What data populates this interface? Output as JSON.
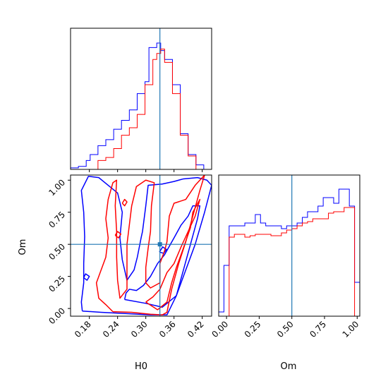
{
  "chart_data": {
    "type": "corner",
    "parameters": [
      "H0",
      "Om"
    ],
    "truths": {
      "H0": 0.33,
      "Om": 0.5
    },
    "colors": {
      "series_a": "#0000ff",
      "series_b": "#ff0000",
      "truth": "#1f77b4"
    },
    "grid": false,
    "legend": "none",
    "panels": [
      {
        "id": "hist-h0",
        "kind": "histogram",
        "x_param": "H0",
        "xlim": [
          0.14,
          0.44
        ],
        "ylim": [
          0,
          95
        ],
        "bin_edges": [
          0.14,
          0.1483,
          0.1567,
          0.165,
          0.1733,
          0.1817,
          0.19,
          0.1983,
          0.2067,
          0.215,
          0.2233,
          0.2317,
          0.24,
          0.2483,
          0.2567,
          0.265,
          0.2733,
          0.2817,
          0.29,
          0.2983,
          0.3067,
          0.315,
          0.3233,
          0.3317,
          0.34,
          0.3483,
          0.3567,
          0.365,
          0.3733,
          0.3817,
          0.39,
          0.3983,
          0.4067,
          0.415,
          0.4233,
          0.4317,
          0.44
        ],
        "series": [
          {
            "color_key": "series_a",
            "counts": [
              1,
              1,
              2,
              2,
              6,
              10,
              10,
              16,
              16,
              20,
              20,
              27,
              27,
              33,
              33,
              40,
              40,
              51,
              51,
              59,
              82,
              82,
              85,
              80,
              74,
              74,
              57,
              57,
              24,
              24,
              10,
              10,
              3,
              3,
              0,
              0
            ]
          },
          {
            "color_key": "series_b",
            "counts": [
              0,
              0,
              0,
              0,
              0,
              0,
              0,
              6,
              6,
              8,
              8,
              14,
              14,
              23,
              23,
              28,
              28,
              37,
              37,
              57,
              57,
              74,
              78,
              81,
              72,
              72,
              51,
              51,
              23,
              23,
              9,
              9,
              0,
              0,
              0,
              0
            ]
          }
        ]
      },
      {
        "id": "hist-om",
        "kind": "histogram",
        "x_param": "Om",
        "xlim": [
          -0.06,
          1.02
        ],
        "ylim": [
          0,
          100
        ],
        "bin_edges": [
          -0.06,
          -0.02,
          0.02,
          0.06,
          0.1,
          0.14,
          0.18,
          0.22,
          0.26,
          0.3,
          0.34,
          0.38,
          0.42,
          0.46,
          0.5,
          0.54,
          0.58,
          0.62,
          0.66,
          0.7,
          0.74,
          0.78,
          0.82,
          0.86,
          0.9,
          0.94,
          0.98,
          1.02
        ],
        "series": [
          {
            "color_key": "series_a",
            "counts": [
              3,
              36,
              64,
              64,
              64,
              66,
              66,
              72,
              66,
              64,
              64,
              64,
              62,
              64,
              64,
              66,
              70,
              74,
              74,
              78,
              84,
              84,
              80,
              90,
              90,
              78,
              24
            ]
          },
          {
            "color_key": "series_b",
            "counts": [
              0,
              0,
              56,
              58,
              58,
              56,
              57,
              58,
              58,
              58,
              57,
              57,
              59,
              61,
              62,
              64,
              66,
              67,
              69,
              69,
              69,
              73,
              74,
              74,
              77,
              77,
              0
            ]
          }
        ]
      },
      {
        "id": "contour-h0-om",
        "kind": "contour",
        "x_param": "H0",
        "y_param": "Om",
        "xlim": [
          0.14,
          0.44
        ],
        "ylim": [
          -0.06,
          1.04
        ],
        "contours": [
          {
            "color_key": "series_a",
            "level": "outer",
            "points": [
              [
                0.165,
                -0.02
              ],
              [
                0.205,
                -0.03
              ],
              [
                0.26,
                -0.04
              ],
              [
                0.31,
                -0.05
              ],
              [
                0.345,
                -0.05
              ],
              [
                0.365,
                0.1
              ],
              [
                0.385,
                0.3
              ],
              [
                0.405,
                0.5
              ],
              [
                0.425,
                0.75
              ],
              [
                0.44,
                0.96
              ],
              [
                0.43,
                1.0
              ],
              [
                0.41,
                1.02
              ],
              [
                0.38,
                1.01
              ],
              [
                0.36,
                0.99
              ],
              [
                0.335,
                0.97
              ],
              [
                0.305,
                0.96
              ],
              [
                0.3,
                0.8
              ],
              [
                0.293,
                0.6
              ],
              [
                0.29,
                0.55
              ],
              [
                0.282,
                0.4
              ],
              [
                0.275,
                0.3
              ],
              [
                0.26,
                0.22
              ],
              [
                0.25,
                0.38
              ],
              [
                0.245,
                0.55
              ],
              [
                0.25,
                0.75
              ],
              [
                0.24,
                0.9
              ],
              [
                0.2,
                1.02
              ],
              [
                0.178,
                1.03
              ],
              [
                0.163,
                0.92
              ],
              [
                0.168,
                0.75
              ],
              [
                0.17,
                0.56
              ],
              [
                0.168,
                0.35
              ],
              [
                0.168,
                0.2
              ],
              [
                0.163,
                0.05
              ],
              [
                0.165,
                -0.02
              ]
            ]
          },
          {
            "color_key": "series_a",
            "level": "inner",
            "points": [
              [
                0.255,
                0.07
              ],
              [
                0.3,
                0.04
              ],
              [
                0.335,
                0.01
              ],
              [
                0.365,
                0.1
              ],
              [
                0.38,
                0.3
              ],
              [
                0.395,
                0.5
              ],
              [
                0.41,
                0.7
              ],
              [
                0.415,
                0.8
              ],
              [
                0.4,
                0.8
              ],
              [
                0.39,
                0.72
              ],
              [
                0.375,
                0.65
              ],
              [
                0.36,
                0.55
              ],
              [
                0.34,
                0.42
              ],
              [
                0.325,
                0.35
              ],
              [
                0.31,
                0.25
              ],
              [
                0.295,
                0.18
              ],
              [
                0.28,
                0.14
              ],
              [
                0.265,
                0.15
              ],
              [
                0.258,
                0.12
              ],
              [
                0.255,
                0.07
              ]
            ]
          },
          {
            "color_key": "series_a",
            "level": "island",
            "points": [
              [
                0.168,
                0.24
              ],
              [
                0.175,
                0.22
              ],
              [
                0.18,
                0.25
              ],
              [
                0.172,
                0.27
              ],
              [
                0.168,
                0.24
              ]
            ]
          },
          {
            "color_key": "series_a",
            "level": "island",
            "points": [
              [
                0.329,
                0.44
              ],
              [
                0.338,
                0.43
              ],
              [
                0.344,
                0.46
              ],
              [
                0.336,
                0.48
              ],
              [
                0.329,
                0.44
              ]
            ]
          },
          {
            "color_key": "series_b",
            "level": "outer",
            "points": [
              [
                0.23,
                -0.025
              ],
              [
                0.27,
                -0.03
              ],
              [
                0.31,
                -0.045
              ],
              [
                0.335,
                -0.05
              ],
              [
                0.345,
                -0.03
              ],
              [
                0.355,
                0.15
              ],
              [
                0.37,
                0.35
              ],
              [
                0.385,
                0.52
              ],
              [
                0.4,
                0.72
              ],
              [
                0.415,
                0.92
              ],
              [
                0.425,
                1.04
              ],
              [
                0.405,
                0.96
              ],
              [
                0.385,
                0.85
              ],
              [
                0.36,
                0.82
              ],
              [
                0.35,
                0.72
              ],
              [
                0.345,
                0.52
              ],
              [
                0.34,
                0.45
              ],
              [
                0.33,
                0.35
              ],
              [
                0.33,
                0.2
              ],
              [
                0.31,
                0.16
              ],
              [
                0.3,
                0.2
              ],
              [
                0.3,
                0.32
              ],
              [
                0.305,
                0.47
              ],
              [
                0.31,
                0.6
              ],
              [
                0.312,
                0.8
              ],
              [
                0.318,
                0.98
              ],
              [
                0.3,
                1.0
              ],
              [
                0.28,
                0.95
              ],
              [
                0.27,
                0.8
              ],
              [
                0.265,
                0.65
              ],
              [
                0.26,
                0.5
              ],
              [
                0.26,
                0.3
              ],
              [
                0.26,
                0.15
              ],
              [
                0.245,
                0.08
              ],
              [
                0.24,
                0.22
              ],
              [
                0.238,
                0.4
              ],
              [
                0.238,
                0.6
              ],
              [
                0.235,
                0.8
              ],
              [
                0.238,
                1.0
              ],
              [
                0.23,
                0.98
              ],
              [
                0.22,
                0.85
              ],
              [
                0.215,
                0.7
              ],
              [
                0.22,
                0.55
              ],
              [
                0.215,
                0.4
              ],
              [
                0.205,
                0.3
              ],
              [
                0.195,
                0.2
              ],
              [
                0.2,
                0.08
              ],
              [
                0.215,
                0.03
              ],
              [
                0.23,
                -0.025
              ]
            ]
          },
          {
            "color_key": "series_b",
            "level": "inner",
            "points": [
              [
                0.3,
                0.05
              ],
              [
                0.325,
                -0.01
              ],
              [
                0.345,
                0.05
              ],
              [
                0.355,
                0.2
              ],
              [
                0.365,
                0.32
              ],
              [
                0.378,
                0.45
              ],
              [
                0.395,
                0.63
              ],
              [
                0.4,
                0.75
              ],
              [
                0.415,
                0.85
              ],
              [
                0.405,
                0.72
              ],
              [
                0.39,
                0.6
              ],
              [
                0.375,
                0.48
              ],
              [
                0.36,
                0.35
              ],
              [
                0.345,
                0.28
              ],
              [
                0.33,
                0.15
              ],
              [
                0.315,
                0.09
              ],
              [
                0.3,
                0.05
              ]
            ]
          },
          {
            "color_key": "series_b",
            "level": "island",
            "points": [
              [
                0.235,
                0.57
              ],
              [
                0.242,
                0.55
              ],
              [
                0.247,
                0.58
              ],
              [
                0.24,
                0.6
              ],
              [
                0.235,
                0.57
              ]
            ]
          },
          {
            "color_key": "series_b",
            "level": "island",
            "points": [
              [
                0.25,
                0.82
              ],
              [
                0.255,
                0.8
              ],
              [
                0.26,
                0.83
              ],
              [
                0.255,
                0.85
              ],
              [
                0.25,
                0.82
              ]
            ]
          }
        ]
      }
    ],
    "axes": {
      "H0": {
        "label": "H0",
        "ticks": [
          0.18,
          0.24,
          0.3,
          0.36,
          0.42
        ],
        "tick_labels": [
          "0.18",
          "0.24",
          "0.30",
          "0.36",
          "0.42"
        ]
      },
      "Om": {
        "label": "Om",
        "ticks": [
          0.0,
          0.25,
          0.5,
          0.75,
          1.0
        ],
        "tick_labels": [
          "0.00",
          "0.25",
          "0.50",
          "0.75",
          "1.00"
        ]
      }
    }
  }
}
